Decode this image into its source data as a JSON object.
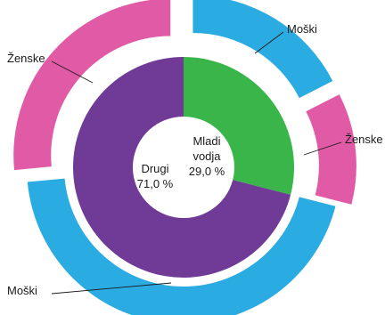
{
  "chart_data": {
    "type": "pie",
    "variant": "nested-donut",
    "inner_ring": {
      "slices": [
        {
          "name": "Mladi vodja",
          "label_lines": [
            "Mladi",
            "vodja"
          ],
          "value_label": "29,0 %",
          "value": 29.0,
          "color": "#39b54a"
        },
        {
          "name": "Drugi",
          "label_lines": [
            "Drugi"
          ],
          "value_label": "71,0 %",
          "value": 71.0,
          "color": "#6f3b97"
        }
      ]
    },
    "outer_ring": {
      "slices": [
        {
          "parent": "Mladi vodja",
          "name": "Moški",
          "value": 17.5,
          "color": "#2aabe2"
        },
        {
          "parent": "Mladi vodja",
          "name": "Ženske",
          "value": 11.5,
          "color": "#e05aa6"
        },
        {
          "parent": "Drugi",
          "name": "Moški",
          "value": 44.5,
          "color": "#2aabe2"
        },
        {
          "parent": "Drugi",
          "name": "Ženske",
          "value": 26.5,
          "color": "#e05aa6"
        }
      ]
    },
    "colors": {
      "mladi_vodja": "#39b54a",
      "drugi": "#6f3b97",
      "moski": "#2aabe2",
      "zenske": "#e05aa6"
    },
    "legend": "none"
  }
}
